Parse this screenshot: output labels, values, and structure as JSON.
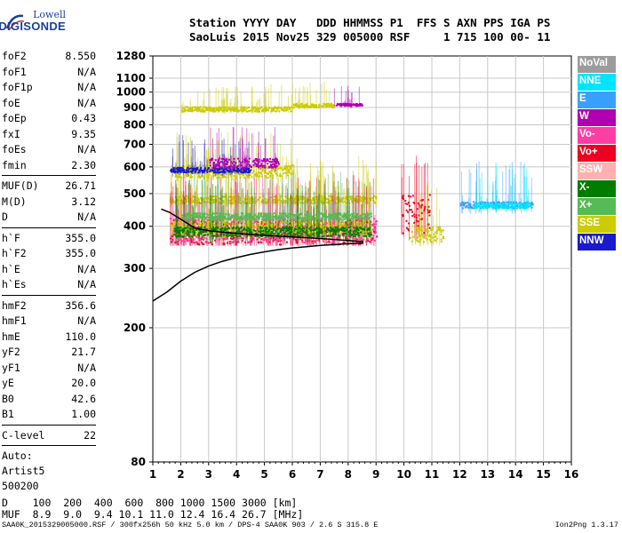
{
  "logo": {
    "line1": "Lowell",
    "line2": "DIGISONDE"
  },
  "header": {
    "line1": "Station YYYY DAY   DDD HHMMSS P1  FFS S AXN PPS IGA PS",
    "line2": "SaoLuis 2015 Nov25 329 005000 RSF     1 715 100 00- 11"
  },
  "params": [
    {
      "k": "foF2",
      "v": "8.550"
    },
    {
      "k": "foF1",
      "v": "N/A"
    },
    {
      "k": "foF1p",
      "v": "N/A"
    },
    {
      "k": "foE",
      "v": "N/A"
    },
    {
      "k": "foEp",
      "v": "0.43"
    },
    {
      "k": "fxI",
      "v": "9.35"
    },
    {
      "k": "foEs",
      "v": "N/A"
    },
    {
      "k": "fmin",
      "v": "2.30"
    },
    {
      "sep": true
    },
    {
      "k": "MUF(D)",
      "v": "26.71"
    },
    {
      "k": "M(D)",
      "v": "3.12"
    },
    {
      "k": "D",
      "v": "N/A"
    },
    {
      "sep": true
    },
    {
      "k": "h`F",
      "v": "355.0"
    },
    {
      "k": "h`F2",
      "v": "355.0"
    },
    {
      "k": "h`E",
      "v": "N/A"
    },
    {
      "k": "h`Es",
      "v": "N/A"
    },
    {
      "sep": true
    },
    {
      "k": "hmF2",
      "v": "356.6"
    },
    {
      "k": "hmF1",
      "v": "N/A"
    },
    {
      "k": "hmE",
      "v": "110.0"
    },
    {
      "k": "yF2",
      "v": "21.7"
    },
    {
      "k": "yF1",
      "v": "N/A"
    },
    {
      "k": "yE",
      "v": "20.0"
    },
    {
      "k": "B0",
      "v": "42.6"
    },
    {
      "k": "B1",
      "v": "1.00"
    },
    {
      "sep": true
    },
    {
      "k": "C-level",
      "v": "22"
    },
    {
      "sep": true
    }
  ],
  "auto": [
    "Auto:",
    "Artist5",
    "500200"
  ],
  "legend": [
    {
      "label": "NoVal",
      "color": "#9c9c9c"
    },
    {
      "label": "NNE",
      "color": "#00e5ff"
    },
    {
      "label": "E",
      "color": "#3aa0ff"
    },
    {
      "label": "W",
      "color": "#b000b0"
    },
    {
      "label": "Vo-",
      "color": "#ff3ea5"
    },
    {
      "label": "Vo+",
      "color": "#ee0022"
    },
    {
      "label": "SSW",
      "color": "#ffb0b0"
    },
    {
      "label": "X-",
      "color": "#007d00"
    },
    {
      "label": "X+",
      "color": "#55bb55"
    },
    {
      "label": "SSE",
      "color": "#cccc00"
    },
    {
      "label": "NNW",
      "color": "#1a1acc"
    }
  ],
  "chart_data": {
    "type": "scatter",
    "title": "",
    "xlabel": "",
    "ylabel": "",
    "xlim": [
      1,
      16
    ],
    "ylim": [
      80,
      1280
    ],
    "yscale": "log",
    "grid": true,
    "xticks": [
      "1",
      "2",
      "3",
      "4",
      "5",
      "6",
      "7",
      "8",
      "9",
      "10",
      "11",
      "12",
      "13",
      "14",
      "15",
      "16"
    ],
    "yticks": [
      {
        "v": 80,
        "label": "80"
      },
      {
        "v": 200,
        "label": "200"
      },
      {
        "v": 300,
        "label": "300"
      },
      {
        "v": 400,
        "label": "400"
      },
      {
        "v": 500,
        "label": "500"
      },
      {
        "v": 600,
        "label": "600"
      },
      {
        "v": 700,
        "label": "700"
      },
      {
        "v": 800,
        "label": "800"
      },
      {
        "v": 900,
        "label": "900"
      },
      {
        "v": 1000,
        "label": "1000"
      },
      {
        "v": 1100,
        "label": "1100"
      },
      {
        "v": 1280,
        "label": "1280"
      }
    ],
    "traces": [
      {
        "mode": "O",
        "color": "#cccc00",
        "f0": 1.6,
        "f1": 9.0,
        "h0": 470,
        "h1": 495
      },
      {
        "mode": "O",
        "color": "#ee0022",
        "f0": 1.6,
        "f1": 9.0,
        "h0": 355,
        "h1": 420
      },
      {
        "mode": "O",
        "color": "#ff3ea5",
        "f0": 1.6,
        "f1": 9.0,
        "h0": 360,
        "h1": 430
      },
      {
        "mode": "O",
        "color": "#cccc00",
        "f0": 1.6,
        "f1": 8.8,
        "h0": 380,
        "h1": 415
      },
      {
        "mode": "X",
        "color": "#007d00",
        "f0": 1.7,
        "f1": 8.8,
        "h0": 375,
        "h1": 400
      },
      {
        "mode": "X",
        "color": "#55bb55",
        "f0": 2.0,
        "f1": 8.8,
        "h0": 420,
        "h1": 440
      },
      {
        "mode": "O",
        "color": "#cccc00",
        "f0": 1.7,
        "f1": 6.0,
        "h0": 560,
        "h1": 610
      },
      {
        "mode": "O",
        "color": "#1a1acc",
        "f0": 1.6,
        "f1": 4.5,
        "h0": 580,
        "h1": 600
      },
      {
        "mode": "O",
        "color": "#b000b0",
        "f0": 3.0,
        "f1": 5.5,
        "h0": 600,
        "h1": 640
      },
      {
        "mode": "O",
        "color": "#cccc00",
        "f0": 2.0,
        "f1": 6.0,
        "h0": 880,
        "h1": 910
      },
      {
        "mode": "O",
        "color": "#cccc00",
        "f0": 6.0,
        "f1": 7.5,
        "h0": 905,
        "h1": 930
      },
      {
        "mode": "O",
        "color": "#b000b0",
        "f0": 7.5,
        "f1": 8.5,
        "h0": 915,
        "h1": 930
      },
      {
        "mode": "O",
        "color": "#ee0022",
        "f0": 9.9,
        "f1": 10.9,
        "h0": 380,
        "h1": 500
      },
      {
        "mode": "O",
        "color": "#cccc00",
        "f0": 10.2,
        "f1": 11.4,
        "h0": 360,
        "h1": 400
      },
      {
        "mode": "O",
        "color": "#3aa0ff",
        "f0": 12.0,
        "f1": 14.6,
        "h0": 455,
        "h1": 475
      },
      {
        "mode": "O",
        "color": "#00e5ff",
        "f0": 12.5,
        "f1": 14.5,
        "h0": 455,
        "h1": 470
      }
    ],
    "profile": [
      {
        "f": 1.0,
        "h": 240
      },
      {
        "f": 1.5,
        "h": 255
      },
      {
        "f": 2.0,
        "h": 275
      },
      {
        "f": 2.5,
        "h": 292
      },
      {
        "f": 3.0,
        "h": 305
      },
      {
        "f": 3.5,
        "h": 315
      },
      {
        "f": 4.0,
        "h": 323
      },
      {
        "f": 4.5,
        "h": 330
      },
      {
        "f": 5.0,
        "h": 336
      },
      {
        "f": 5.5,
        "h": 341
      },
      {
        "f": 6.0,
        "h": 345
      },
      {
        "f": 6.5,
        "h": 348
      },
      {
        "f": 7.0,
        "h": 351
      },
      {
        "f": 7.5,
        "h": 353
      },
      {
        "f": 8.0,
        "h": 355
      },
      {
        "f": 8.55,
        "h": 356.6
      }
    ],
    "trace_line": [
      {
        "f": 1.3,
        "h": 450
      },
      {
        "f": 1.6,
        "h": 440
      },
      {
        "f": 2.0,
        "h": 420
      },
      {
        "f": 2.5,
        "h": 395
      },
      {
        "f": 3.0,
        "h": 388
      },
      {
        "f": 3.5,
        "h": 384
      },
      {
        "f": 4.0,
        "h": 381
      },
      {
        "f": 5.0,
        "h": 376
      },
      {
        "f": 6.0,
        "h": 372
      },
      {
        "f": 7.0,
        "h": 368
      },
      {
        "f": 8.0,
        "h": 363
      },
      {
        "f": 8.55,
        "h": 360
      }
    ]
  },
  "bottom": {
    "d_line": "D    100  200  400  600  800 1000 1500 3000 [km]",
    "muf_line": "MUF  8.9  9.0  9.4 10.1 11.0 12.4 16.4 26.7 [MHz]"
  },
  "footer": "SAA0K_2015329005000.RSF / 300fx256h 50 kHz 5.0 km / DPS-4 SAA0K 903 / 2.6 S 315.8 E",
  "version": "Ion2Png 1.3.17"
}
